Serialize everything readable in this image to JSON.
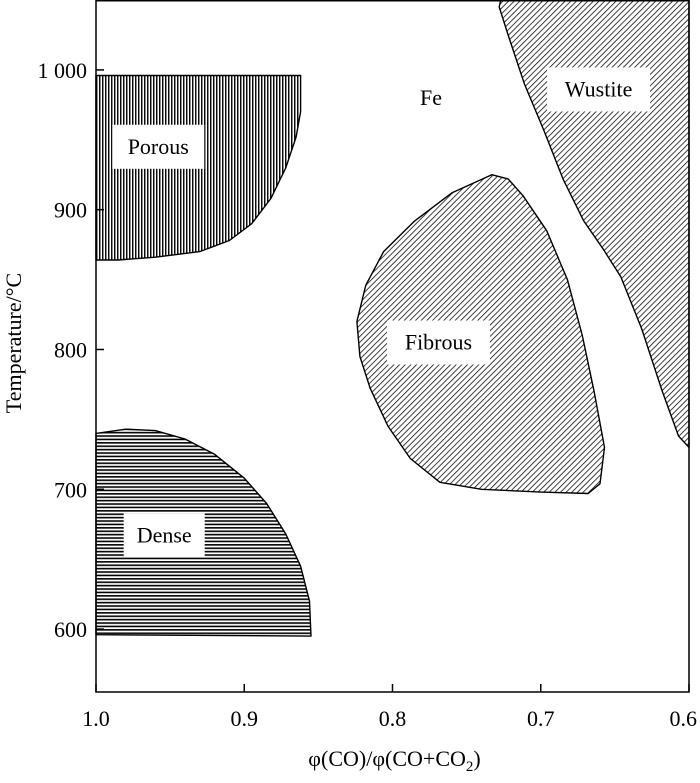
{
  "chart_data": {
    "type": "area",
    "title": "",
    "xlabel": "φ(CO)/φ(CO+CO2)",
    "ylabel": "Temperature/°C",
    "xlim": [
      1.0,
      0.6
    ],
    "ylim": [
      555,
      1050
    ],
    "x_reversed": true,
    "xticks": [
      1.0,
      0.9,
      0.8,
      0.7,
      0.6
    ],
    "xtick_labels": [
      "1.0",
      "0.9",
      "0.8",
      "0.7",
      "0.6"
    ],
    "yticks": [
      600,
      700,
      800,
      900,
      1000
    ],
    "ytick_labels": [
      "600",
      "700",
      "800",
      "900",
      "1 000"
    ],
    "grid": false,
    "annotations": [
      {
        "text": "Fe",
        "x": 0.774,
        "y": 980
      }
    ],
    "regions": [
      {
        "name": "Porous",
        "pattern": "vertical-lines",
        "label_at": [
          0.958,
          945
        ],
        "boundary": [
          [
            1.0,
            996
          ],
          [
            0.862,
            996
          ],
          [
            0.862,
            970
          ],
          [
            0.865,
            952
          ],
          [
            0.872,
            930
          ],
          [
            0.882,
            908
          ],
          [
            0.895,
            890
          ],
          [
            0.91,
            878
          ],
          [
            0.93,
            870
          ],
          [
            0.96,
            866
          ],
          [
            0.985,
            864
          ],
          [
            1.0,
            864
          ]
        ]
      },
      {
        "name": "Dense",
        "pattern": "horizontal-lines",
        "label_at": [
          0.954,
          667
        ],
        "boundary": [
          [
            1.0,
            740
          ],
          [
            0.98,
            743
          ],
          [
            0.96,
            742
          ],
          [
            0.94,
            736
          ],
          [
            0.92,
            725
          ],
          [
            0.9,
            708
          ],
          [
            0.885,
            690
          ],
          [
            0.872,
            668
          ],
          [
            0.862,
            645
          ],
          [
            0.856,
            620
          ],
          [
            0.855,
            595
          ],
          [
            1.0,
            596
          ]
        ]
      },
      {
        "name": "Fibrous",
        "pattern": "diagonal-lines",
        "label_at": [
          0.769,
          805
        ],
        "boundary": [
          [
            0.733,
            925
          ],
          [
            0.76,
            912
          ],
          [
            0.785,
            892
          ],
          [
            0.806,
            870
          ],
          [
            0.818,
            846
          ],
          [
            0.824,
            820
          ],
          [
            0.822,
            795
          ],
          [
            0.815,
            772
          ],
          [
            0.803,
            745
          ],
          [
            0.788,
            722
          ],
          [
            0.768,
            705
          ],
          [
            0.74,
            700
          ],
          [
            0.7,
            698
          ],
          [
            0.668,
            697
          ],
          [
            0.66,
            704
          ],
          [
            0.657,
            730
          ],
          [
            0.664,
            770
          ],
          [
            0.672,
            810
          ],
          [
            0.682,
            850
          ],
          [
            0.696,
            885
          ],
          [
            0.712,
            910
          ],
          [
            0.722,
            922
          ]
        ]
      },
      {
        "name": "Wustite",
        "pattern": "diagonal-lines",
        "label_at": [
          0.661,
          986
        ],
        "boundary": [
          [
            0.727,
            1050
          ],
          [
            0.6,
            1050
          ],
          [
            0.6,
            730
          ],
          [
            0.607,
            738
          ],
          [
            0.618,
            770
          ],
          [
            0.632,
            815
          ],
          [
            0.646,
            852
          ],
          [
            0.658,
            872
          ],
          [
            0.671,
            892
          ],
          [
            0.685,
            922
          ],
          [
            0.698,
            957
          ],
          [
            0.711,
            990
          ],
          [
            0.722,
            1025
          ],
          [
            0.728,
            1045
          ]
        ]
      }
    ]
  }
}
